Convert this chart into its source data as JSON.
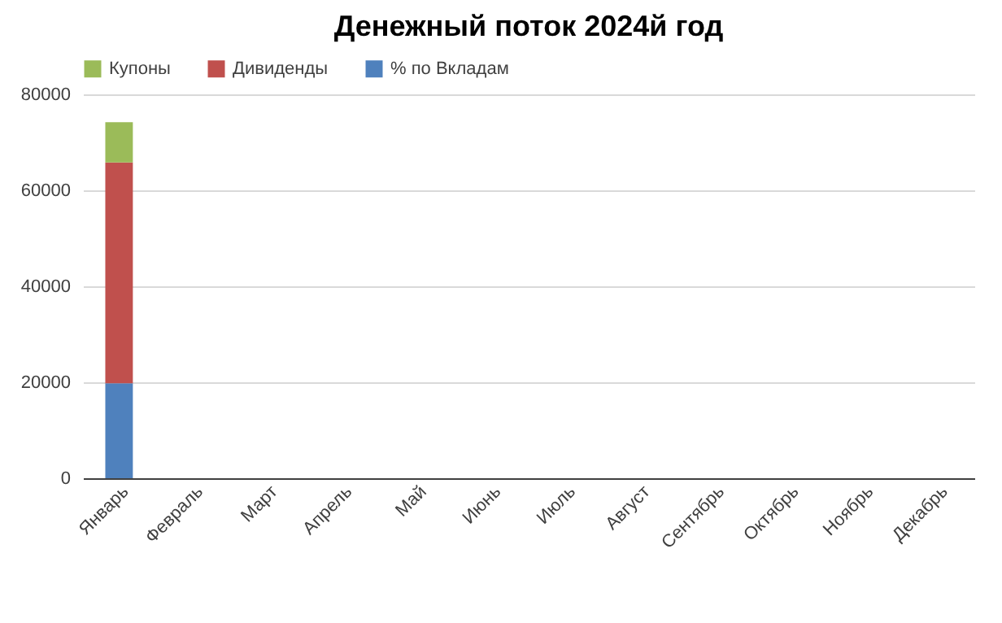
{
  "chart_data": {
    "type": "bar",
    "title": "Денежный поток 2024й год",
    "stacked": true,
    "categories": [
      "Январь",
      "Февраль",
      "Март",
      "Апрель",
      "Май",
      "Июнь",
      "Июль",
      "Август",
      "Сентябрь",
      "Октябрь",
      "Ноябрь",
      "Декабрь"
    ],
    "series": [
      {
        "name": "% по Вкладам",
        "color": "#4f81bd",
        "values": [
          19800,
          null,
          null,
          null,
          null,
          null,
          null,
          null,
          null,
          null,
          null,
          null
        ]
      },
      {
        "name": "Дивиденды",
        "color": "#c0504d",
        "values": [
          46000,
          null,
          null,
          null,
          null,
          null,
          null,
          null,
          null,
          null,
          null,
          null
        ]
      },
      {
        "name": "Купоны",
        "color": "#9bbb59",
        "values": [
          8400,
          null,
          null,
          null,
          null,
          null,
          null,
          null,
          null,
          null,
          null,
          null
        ]
      }
    ],
    "ylim": [
      0,
      80000
    ],
    "yticks": [
      0,
      20000,
      40000,
      60000,
      80000
    ],
    "grid": "y",
    "legend": "top"
  }
}
